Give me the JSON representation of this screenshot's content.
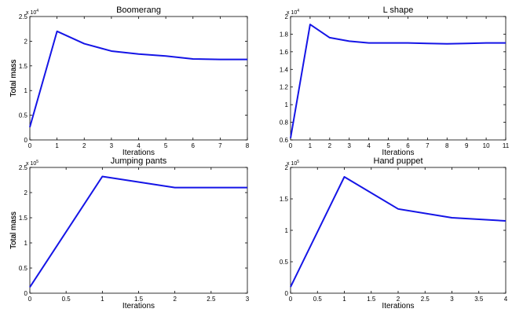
{
  "chart_data": [
    {
      "type": "line",
      "title": "Boomerang",
      "xlabel": "Iterations",
      "ylabel": "Total mass",
      "multiplier": "x 10",
      "multiplier_exp": "4",
      "xlim": [
        0,
        8
      ],
      "ylim": [
        0,
        2.5
      ],
      "xticks": [
        "0",
        "1",
        "2",
        "3",
        "4",
        "5",
        "6",
        "7",
        "8"
      ],
      "yticks": [
        "0",
        "0.5",
        "1",
        "1.5",
        "2",
        "2.5"
      ],
      "xtick_vals": [
        0,
        1,
        2,
        3,
        4,
        5,
        6,
        7,
        8
      ],
      "ytick_vals": [
        0,
        0.5,
        1,
        1.5,
        2,
        2.5
      ],
      "x": [
        0,
        1,
        2,
        3,
        4,
        5,
        6,
        7,
        8
      ],
      "y": [
        2600,
        22000,
        19500,
        18000,
        17400,
        17000,
        16400,
        16300,
        16300
      ],
      "color": "#1515e6"
    },
    {
      "type": "line",
      "title": "L shape",
      "xlabel": "Iterations",
      "ylabel": "Total mass",
      "multiplier": "x 10",
      "multiplier_exp": "4",
      "xlim": [
        0,
        11
      ],
      "ylim": [
        0.6,
        2
      ],
      "xticks": [
        "0",
        "1",
        "2",
        "3",
        "4",
        "5",
        "6",
        "7",
        "8",
        "9",
        "10",
        "11"
      ],
      "yticks": [
        "0.6",
        "0.8",
        "1",
        "1.2",
        "1.4",
        "1.6",
        "1.8",
        "2"
      ],
      "xtick_vals": [
        0,
        1,
        2,
        3,
        4,
        5,
        6,
        7,
        8,
        9,
        10,
        11
      ],
      "ytick_vals": [
        0.6,
        0.8,
        1,
        1.2,
        1.4,
        1.6,
        1.8,
        2
      ],
      "x": [
        0,
        1,
        2,
        3,
        4,
        5,
        6,
        7,
        8,
        9,
        10,
        11
      ],
      "y": [
        6200,
        19100,
        17600,
        17200,
        17000,
        17000,
        17000,
        16950,
        16900,
        16950,
        17000,
        17000
      ],
      "color": "#1515e6"
    },
    {
      "type": "line",
      "title": "Jumping pants",
      "xlabel": "Iterations",
      "ylabel": "Total mass",
      "multiplier": "x 10",
      "multiplier_exp": "5",
      "xlim": [
        0,
        3
      ],
      "ylim": [
        0,
        2.5
      ],
      "xticks": [
        "0",
        "0.5",
        "1",
        "1.5",
        "2",
        "2.5",
        "3"
      ],
      "yticks": [
        "0",
        "0.5",
        "1",
        "1.5",
        "2",
        "2.5"
      ],
      "xtick_vals": [
        0,
        0.5,
        1,
        1.5,
        2,
        2.5,
        3
      ],
      "ytick_vals": [
        0,
        0.5,
        1,
        1.5,
        2,
        2.5
      ],
      "x": [
        0,
        1,
        2,
        3
      ],
      "y": [
        12000,
        232000,
        210000,
        210000
      ],
      "color": "#1515e6"
    },
    {
      "type": "line",
      "title": "Hand puppet",
      "xlabel": "Iterations",
      "ylabel": "Total mass",
      "multiplier": "x 10",
      "multiplier_exp": "5",
      "xlim": [
        0,
        4
      ],
      "ylim": [
        0,
        2
      ],
      "xticks": [
        "0",
        "0.5",
        "1",
        "1.5",
        "2",
        "2.5",
        "3",
        "3.5",
        "4"
      ],
      "yticks": [
        "0",
        "0.5",
        "1",
        "1.5",
        "2"
      ],
      "xtick_vals": [
        0,
        0.5,
        1,
        1.5,
        2,
        2.5,
        3,
        3.5,
        4
      ],
      "ytick_vals": [
        0,
        0.5,
        1,
        1.5,
        2
      ],
      "x": [
        0,
        1,
        2,
        3,
        4
      ],
      "y": [
        10000,
        185000,
        134000,
        120000,
        115000
      ],
      "color": "#1515e6"
    }
  ]
}
